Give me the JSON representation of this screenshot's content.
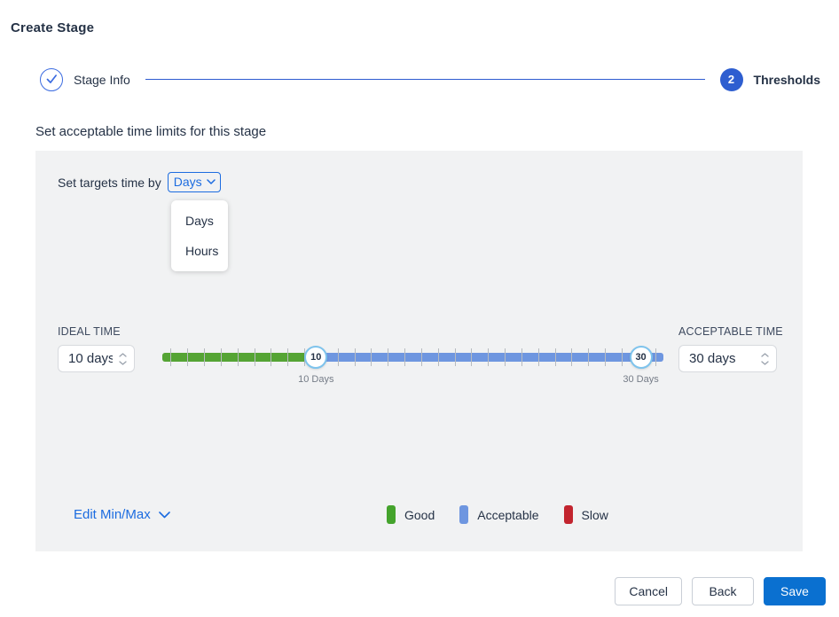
{
  "title": "Create Stage",
  "stepper": {
    "step1": {
      "label": "Stage Info",
      "status": "completed"
    },
    "step2": {
      "label": "Thresholds",
      "number": "2",
      "status": "active"
    }
  },
  "section_heading": "Set acceptable time limits for this stage",
  "panel": {
    "targets_label": "Set targets time by",
    "unit_select": {
      "value": "Days",
      "open": true,
      "options": [
        "Days",
        "Hours"
      ]
    },
    "ideal": {
      "label": "IDEAL TIME",
      "value": "10 days"
    },
    "acceptable": {
      "label": "ACCEPTABLE TIME",
      "value": "30 days"
    },
    "slider": {
      "range_min": 1,
      "range_max": 30,
      "tick_count": 30,
      "min_handle": {
        "value": 10,
        "label": "10 Days"
      },
      "max_handle": {
        "value": 30,
        "label": "30 Days"
      }
    },
    "edit_minmax_label": "Edit Min/Max",
    "legend": [
      {
        "label": "Good",
        "color": "#44A32C"
      },
      {
        "label": "Acceptable",
        "color": "#6E96E0"
      },
      {
        "label": "Slow",
        "color": "#C2242E"
      }
    ]
  },
  "footer": {
    "cancel_label": "Cancel",
    "back_label": "Back",
    "save_label": "Save"
  },
  "colors": {
    "accent_blue": "#1C6CE0",
    "step_blue": "#2E5ED0",
    "save_blue": "#0A70D0",
    "track_green": "#55A434",
    "track_blue": "#6E96E0",
    "panel_bg": "#F1F2F3"
  }
}
